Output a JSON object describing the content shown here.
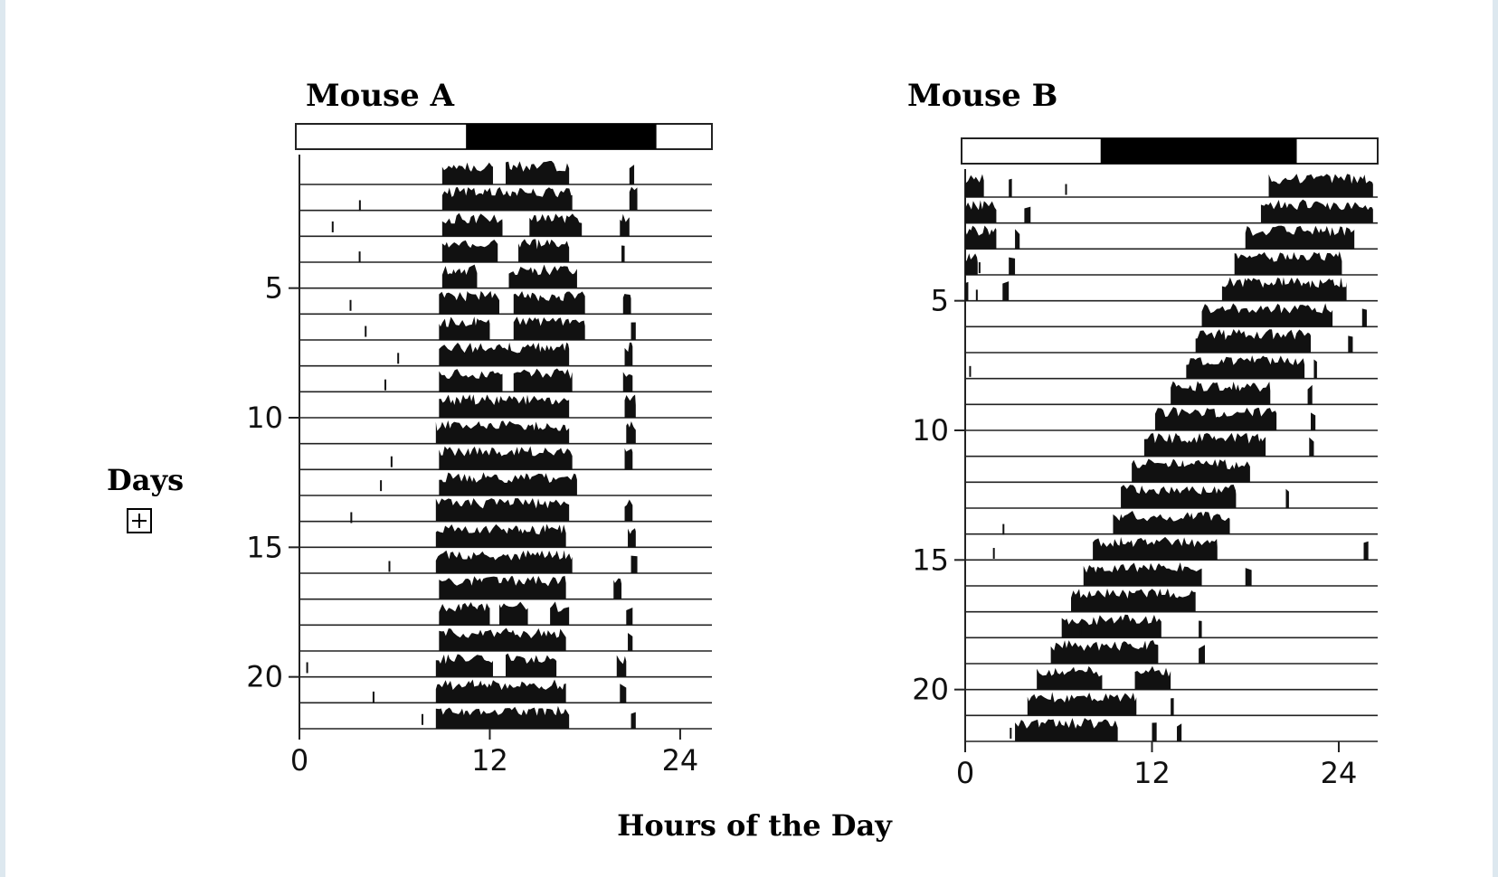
{
  "chart_data": [
    {
      "type": "actogram",
      "title": "Mouse A",
      "light_dark_bar": {
        "dark_start_hour": 10.5,
        "dark_end_hour": 22.5
      },
      "x_range": [
        0,
        26
      ],
      "xticks": [
        "0",
        "12",
        "24"
      ],
      "xtick_values": [
        0,
        12,
        24
      ],
      "days": 22,
      "ytick_days": [
        5,
        10,
        15,
        20
      ],
      "ytick_labels": [
        "5",
        "10",
        "15",
        "20"
      ],
      "activity": [
        [
          [
            9.0,
            12.2
          ],
          [
            13.0,
            17.0
          ],
          [
            20.8,
            21.1
          ]
        ],
        [
          [
            9.0,
            17.2
          ],
          [
            20.8,
            21.3
          ]
        ],
        [
          [
            9.0,
            12.8
          ],
          [
            14.5,
            17.8
          ],
          [
            20.2,
            20.8
          ]
        ],
        [
          [
            9.0,
            12.5
          ],
          [
            13.8,
            17.0
          ],
          [
            20.3,
            20.5
          ]
        ],
        [
          [
            9.0,
            11.2
          ],
          [
            13.2,
            17.5
          ]
        ],
        [
          [
            8.8,
            12.6
          ],
          [
            13.5,
            18.0
          ],
          [
            20.4,
            20.9
          ]
        ],
        [
          [
            8.8,
            12.0
          ],
          [
            13.5,
            18.0
          ],
          [
            20.9,
            21.2
          ]
        ],
        [
          [
            8.8,
            17.0
          ],
          [
            20.5,
            21.0
          ]
        ],
        [
          [
            8.8,
            12.8
          ],
          [
            13.5,
            17.2
          ],
          [
            20.4,
            21.0
          ]
        ],
        [
          [
            8.8,
            17.0
          ],
          [
            20.5,
            21.2
          ]
        ],
        [
          [
            8.6,
            17.0
          ],
          [
            20.6,
            21.2
          ]
        ],
        [
          [
            8.8,
            17.2
          ],
          [
            20.5,
            21.0
          ]
        ],
        [
          [
            8.8,
            17.5
          ]
        ],
        [
          [
            8.6,
            17.0
          ],
          [
            20.5,
            21.0
          ]
        ],
        [
          [
            8.6,
            16.8
          ],
          [
            20.7,
            21.2
          ]
        ],
        [
          [
            8.6,
            17.2
          ],
          [
            20.9,
            21.3
          ]
        ],
        [
          [
            8.8,
            16.8
          ],
          [
            19.8,
            20.3
          ]
        ],
        [
          [
            8.8,
            12.0
          ],
          [
            12.6,
            14.4
          ],
          [
            15.8,
            17.0
          ],
          [
            20.6,
            21.0
          ]
        ],
        [
          [
            8.8,
            16.8
          ],
          [
            20.7,
            21.0
          ]
        ],
        [
          [
            8.6,
            12.2
          ],
          [
            13.0,
            16.2
          ],
          [
            20.0,
            20.6
          ]
        ],
        [
          [
            8.6,
            16.8
          ],
          [
            20.2,
            20.6
          ]
        ],
        [
          [
            8.6,
            17.0
          ],
          [
            20.9,
            21.2
          ]
        ]
      ]
    },
    {
      "type": "actogram",
      "title": "Mouse B",
      "light_dark_bar": {
        "dark_start_hour": 8.7,
        "dark_end_hour": 21.3
      },
      "x_range": [
        0,
        26.5
      ],
      "xticks": [
        "0",
        "12",
        "24"
      ],
      "xtick_values": [
        0,
        12,
        24
      ],
      "days": 22,
      "ytick_days": [
        5,
        10,
        15,
        20
      ],
      "ytick_labels": [
        "5",
        "10",
        "15",
        "20"
      ],
      "activity": [
        [
          [
            0.0,
            1.2
          ],
          [
            2.8,
            3.0
          ],
          [
            19.5,
            26.2
          ]
        ],
        [
          [
            0.0,
            2.0
          ],
          [
            3.8,
            4.2
          ],
          [
            19.0,
            26.2
          ]
        ],
        [
          [
            0.0,
            2.0
          ],
          [
            3.2,
            3.5
          ],
          [
            18.0,
            25.0
          ]
        ],
        [
          [
            0.0,
            0.8
          ],
          [
            2.8,
            3.2
          ],
          [
            17.3,
            24.2
          ]
        ],
        [
          [
            0.0,
            0.2
          ],
          [
            2.4,
            2.8
          ],
          [
            16.5,
            24.5
          ]
        ],
        [
          [
            15.2,
            23.6
          ],
          [
            25.5,
            25.8
          ]
        ],
        [
          [
            14.8,
            22.2
          ],
          [
            24.6,
            24.9
          ]
        ],
        [
          [
            14.2,
            21.8
          ],
          [
            22.4,
            22.6
          ]
        ],
        [
          [
            13.2,
            19.6
          ],
          [
            22.0,
            22.3
          ]
        ],
        [
          [
            12.2,
            20.0
          ],
          [
            22.2,
            22.5
          ]
        ],
        [
          [
            11.5,
            19.3
          ],
          [
            22.1,
            22.4
          ]
        ],
        [
          [
            10.7,
            18.3
          ]
        ],
        [
          [
            10.0,
            17.4
          ],
          [
            20.6,
            20.8
          ]
        ],
        [
          [
            9.5,
            17.0
          ]
        ],
        [
          [
            8.2,
            16.2
          ],
          [
            25.6,
            25.9
          ]
        ],
        [
          [
            7.6,
            15.2
          ],
          [
            18.0,
            18.4
          ]
        ],
        [
          [
            6.8,
            14.8
          ]
        ],
        [
          [
            6.2,
            12.6
          ],
          [
            15.0,
            15.2
          ]
        ],
        [
          [
            5.5,
            12.4
          ],
          [
            15.0,
            15.4
          ]
        ],
        [
          [
            4.6,
            8.8
          ],
          [
            10.9,
            13.2
          ]
        ],
        [
          [
            4.0,
            11.0
          ],
          [
            13.2,
            13.4
          ]
        ],
        [
          [
            3.2,
            9.8
          ],
          [
            12.0,
            12.3
          ],
          [
            13.6,
            13.9
          ]
        ]
      ]
    }
  ],
  "ylabel": "Days",
  "ylabel_icon": "expand-plus-icon",
  "xlabel": "Hours of the Day",
  "colors": {
    "activity": "#111111",
    "dark_phase": "#000000",
    "frame": "#222222",
    "page_edge": "#dde8ef"
  }
}
